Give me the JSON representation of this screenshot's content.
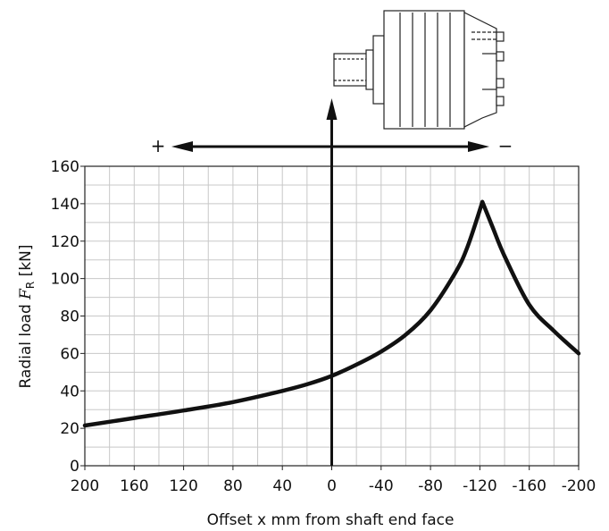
{
  "chart_data": {
    "type": "line",
    "title": "",
    "xlabel": "Offset x mm from shaft end face",
    "ylabel_main": "Radial load ",
    "ylabel_symbol": "F",
    "ylabel_subscript": "R",
    "ylabel_unit": " [kN]",
    "xlim": [
      200,
      -200
    ],
    "ylim": [
      0,
      160
    ],
    "x_tick_labels": [
      "200",
      "160",
      "120",
      "80",
      "40",
      "0",
      "-40",
      "-80",
      "-120",
      "-160",
      "-200"
    ],
    "y_tick_labels": [
      "0",
      "20",
      "40",
      "60",
      "80",
      "100",
      "120",
      "140",
      "160"
    ],
    "grid": true,
    "direction_plus": "+",
    "direction_minus": "−",
    "series": [
      {
        "x": [
          200,
          160,
          120,
          80,
          40,
          20,
          0,
          -20,
          -40,
          -60,
          -80,
          -100,
          -110,
          -122,
          -130,
          -140,
          -160,
          -180,
          -200
        ],
        "y": [
          21.5,
          25.5,
          29.5,
          34,
          40,
          43.5,
          48,
          54,
          61,
          70,
          83,
          103,
          117,
          141,
          128,
          112,
          86,
          72,
          60
        ]
      }
    ],
    "line_color": "#111111",
    "grid_color": "#c8c8c8"
  }
}
